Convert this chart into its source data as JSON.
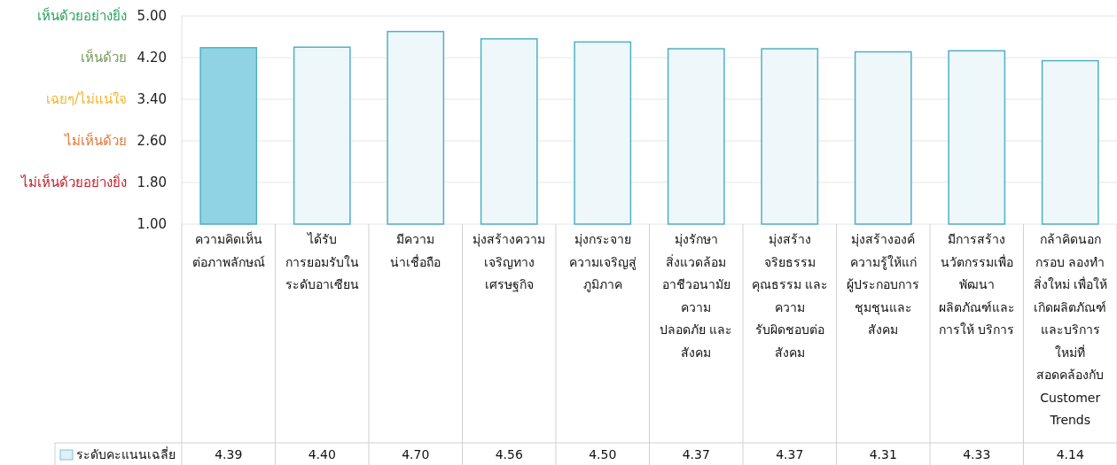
{
  "chart_data": {
    "type": "bar",
    "categories": [
      "ความคิดเห็น\nต่อภาพลักษณ์",
      "ได้รับ\nการยอมรับใน\nระดับอาเซียน",
      "มีความ\nน่าเชื่อถือ",
      "มุ่งสร้างความ\nเจริญทาง\nเศรษฐกิจ",
      "มุ่งกระจาย\nความเจริญสู่\nภูมิภาค",
      "มุ่งรักษา\nสิ่งแวดล้อม\nอาชีวอนามัย\nความ\nปลอดภัย และ\nสังคม",
      "มุ่งสร้าง\nจริยธรรม\nคุณธรรม และ\nความ\nรับผิดชอบต่อ\nสังคม",
      "มุ่งสร้างองค์\nความรู้ให้แก่\nผู้ประกอบการ\nชุมชุนและ\nสังคม",
      "มีการสร้าง\nนวัตกรรมเพื่อ\nพัฒนา\nผลิตภัณฑ์และ\nการให้ บริการ",
      "กล้าคิดนอก\nกรอบ ลองทำ\nสิ่งใหม่ เพื่อให้\nเกิดผลิตภัณฑ์\nและบริการ\nใหม่ที่\nสอดคล้องกับ\nCustomer\nTrends"
    ],
    "series": [
      {
        "name": "ระดับคะแนนเฉลี่ย",
        "color": "#dff0f6",
        "colors": [
          "#8fd3e4",
          "#eef7fa",
          "#eef7fa",
          "#eef7fa",
          "#eef7fa",
          "#eef7fa",
          "#eef7fa",
          "#eef7fa",
          "#eef7fa",
          "#eef7fa"
        ],
        "values": [
          4.39,
          4.4,
          4.7,
          4.56,
          4.5,
          4.37,
          4.37,
          4.31,
          4.33,
          4.14
        ]
      }
    ],
    "ylim": [
      1,
      5
    ],
    "yticks": [
      {
        "value": 1,
        "label": "1.00"
      },
      {
        "value": 1.8,
        "label": "1.80"
      },
      {
        "value": 2.6,
        "label": "2.60"
      },
      {
        "value": 3.4,
        "label": "3.40"
      },
      {
        "value": 4.2,
        "label": "4.20"
      },
      {
        "value": 5,
        "label": "5.00"
      }
    ],
    "annotations": [
      "ไม่เห็นด้วยอย่างยิ่ง",
      "ไม่เห็นด้วย",
      "เฉยๆ/ไม่แน่ใจ",
      "เห็นด้วย",
      "เห็นด้วยอย่างยิ่ง"
    ],
    "value_labels": [
      "4.39",
      "4.40",
      "4.70",
      "4.56",
      "4.50",
      "4.37",
      "4.37",
      "4.31",
      "4.33",
      "4.14"
    ],
    "grid": "y",
    "legend": "bottom left"
  }
}
